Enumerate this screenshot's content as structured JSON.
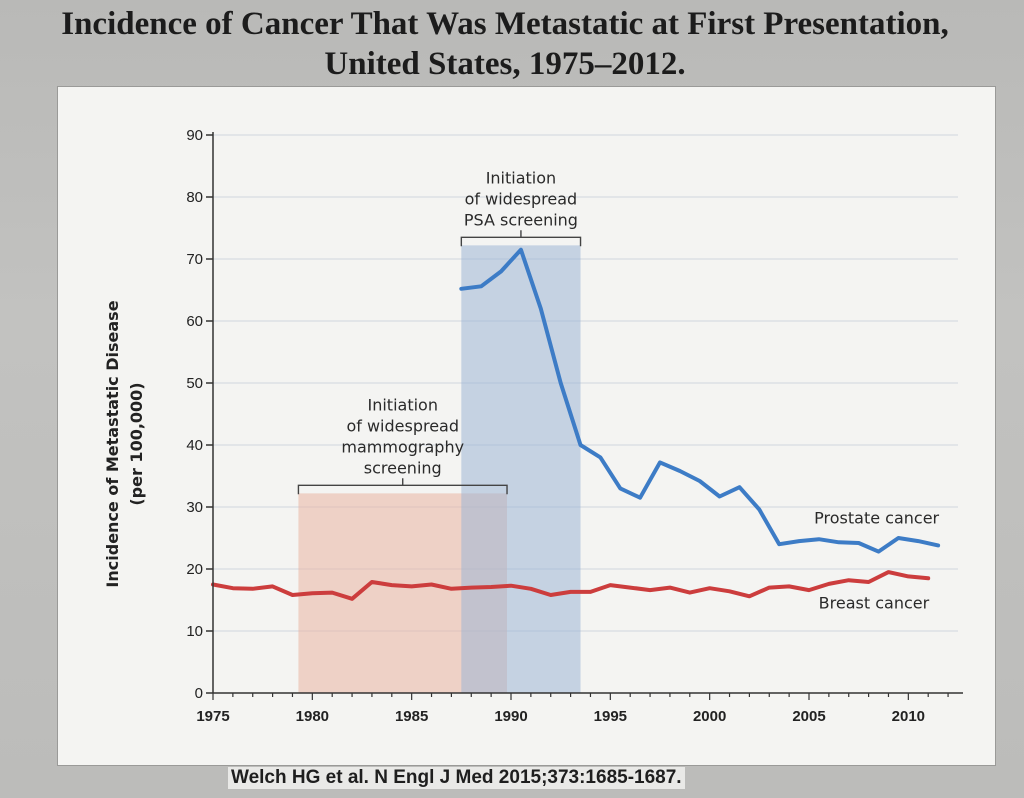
{
  "slide": {
    "title_line1": "Incidence of Cancer That Was Metastatic at First Presentation,",
    "title_line2": "United States, 1975–2012.",
    "citation": "Welch HG et al. N Engl J Med 2015;373:1685-1687."
  },
  "chart_data": {
    "type": "line",
    "title": "Incidence of Cancer That Was Metastatic at First Presentation, United States, 1975–2012.",
    "xlabel": "",
    "ylabel": "Incidence of Metastatic Disease",
    "ylabel_sub": "(per 100,000)",
    "xlim": [
      1975,
      2012.5
    ],
    "ylim": [
      0,
      90
    ],
    "grid": true,
    "x_ticks": [
      1975,
      1980,
      1985,
      1990,
      1995,
      2000,
      2005,
      2010
    ],
    "y_ticks": [
      0,
      10,
      20,
      30,
      40,
      50,
      60,
      70,
      80,
      90
    ],
    "colors": {
      "prostate": "#3d7cc6",
      "breast": "#cc3d3d",
      "mammo_band": "#e9b5a3",
      "psa_band": "#9fb7d6",
      "grid": "#cfd6de",
      "axis": "#333333"
    },
    "series": [
      {
        "name": "Prostate cancer",
        "label": "Prostate cancer",
        "color_key": "prostate",
        "x": [
          1987.5,
          1988.5,
          1989.5,
          1990.5,
          1991.5,
          1992.5,
          1993.5,
          1994.5,
          1995.5,
          1996.5,
          1997.5,
          1998.5,
          1999.5,
          2000.5,
          2001.5,
          2002.5,
          2003.5,
          2004.5,
          2005.5,
          2006.5,
          2007.5,
          2008.5,
          2009.5,
          2010.5,
          2011.5
        ],
        "values": [
          65.2,
          65.6,
          68.0,
          71.5,
          62.0,
          50.0,
          40.0,
          38.0,
          33.0,
          31.5,
          37.2,
          35.8,
          34.2,
          31.7,
          33.2,
          29.6,
          24.0,
          24.5,
          24.8,
          24.3,
          24.2,
          22.8,
          25.0,
          24.5,
          23.8
        ]
      },
      {
        "name": "Breast cancer",
        "label": "Breast cancer",
        "color_key": "breast",
        "x": [
          1975,
          1976,
          1977,
          1978,
          1979,
          1980,
          1981,
          1982,
          1983,
          1984,
          1985,
          1986,
          1987,
          1988,
          1989,
          1990,
          1991,
          1992,
          1993,
          1994,
          1995,
          1996,
          1997,
          1998,
          1999,
          2000,
          2001,
          2002,
          2003,
          2004,
          2005,
          2006,
          2007,
          2008,
          2009,
          2010,
          2011
        ],
        "values": [
          17.5,
          16.9,
          16.8,
          17.2,
          15.8,
          16.1,
          16.2,
          15.2,
          17.9,
          17.4,
          17.2,
          17.5,
          16.8,
          17.0,
          17.1,
          17.3,
          16.8,
          15.8,
          16.3,
          16.3,
          17.4,
          17.0,
          16.6,
          17.0,
          16.2,
          16.9,
          16.4,
          15.6,
          17.0,
          17.2,
          16.6,
          17.6,
          18.2,
          17.9,
          19.5,
          18.8,
          18.5
        ]
      }
    ],
    "annotations": [
      {
        "id": "mammo",
        "lines": [
          "Initiation",
          "of widespread",
          "mammography",
          "screening"
        ],
        "x_range": [
          1979.3,
          1989.8
        ],
        "band_ymax": 32.2,
        "bracket_y": 33.5,
        "color_key": "mammo_band"
      },
      {
        "id": "psa",
        "lines": [
          "Initiation",
          "of widespread",
          "PSA screening"
        ],
        "x_range": [
          1987.5,
          1993.5
        ],
        "band_ymax": 72.2,
        "bracket_y": 73.5,
        "color_key": "psa_band"
      }
    ]
  }
}
